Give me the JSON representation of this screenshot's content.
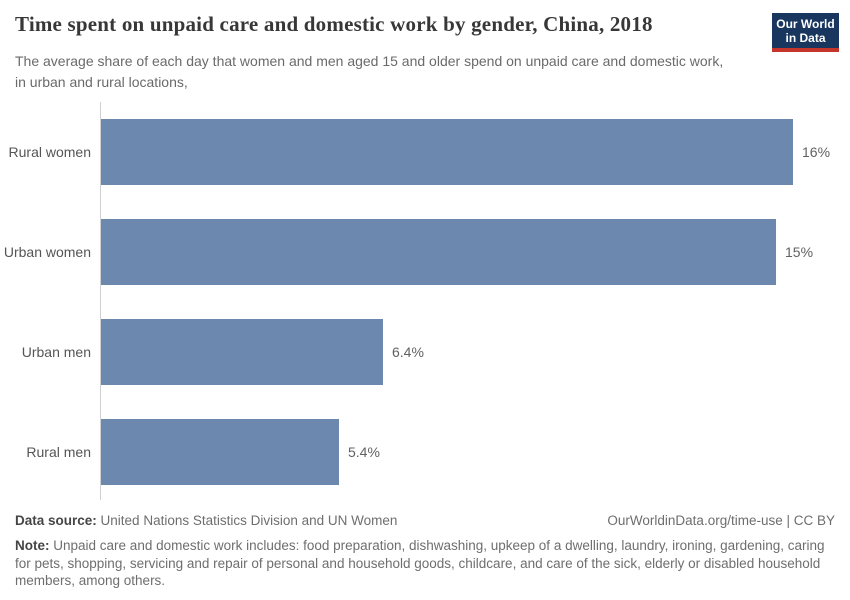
{
  "header": {
    "title": "Time spent on unpaid care and domestic work by gender, China, 2018",
    "subtitle": "The average share of each day that women and men aged 15 and older spend on unpaid care and domestic work, in urban and rural locations,",
    "logo_line1": "Our World",
    "logo_line2": "in Data"
  },
  "chart_data": {
    "type": "bar",
    "orientation": "horizontal",
    "title": "Time spent on unpaid care and domestic work by gender, China, 2018",
    "categories": [
      "Rural women",
      "Urban women",
      "Urban men",
      "Rural men"
    ],
    "values": [
      15.7,
      15.3,
      6.4,
      5.4
    ],
    "value_labels": [
      "16%",
      "15%",
      "6.4%",
      "5.4%"
    ],
    "xlabel": "",
    "ylabel": "",
    "xlim": [
      0,
      16.5
    ],
    "grid": false,
    "legend": false,
    "bar_color": "#6d88ae"
  },
  "footer": {
    "source_label": "Data source:",
    "source_text": "United Nations Statistics Division and UN Women",
    "license": "OurWorldinData.org/time-use | CC BY",
    "note_label": "Note:",
    "note_text": "Unpaid care and domestic work includes: food preparation, dishwashing, upkeep of a dwelling, laundry, ironing, gardening, caring for pets, shopping, servicing and repair of personal and household goods, childcare, and care of the sick, elderly or disabled household members, among others."
  },
  "colors": {
    "bar": "#6d88ae",
    "axis_line": "#d0d0d0",
    "logo_navy": "#18365e",
    "logo_red": "#c5352c",
    "title_text": "#373737",
    "muted_text": "#6e6e6e"
  }
}
